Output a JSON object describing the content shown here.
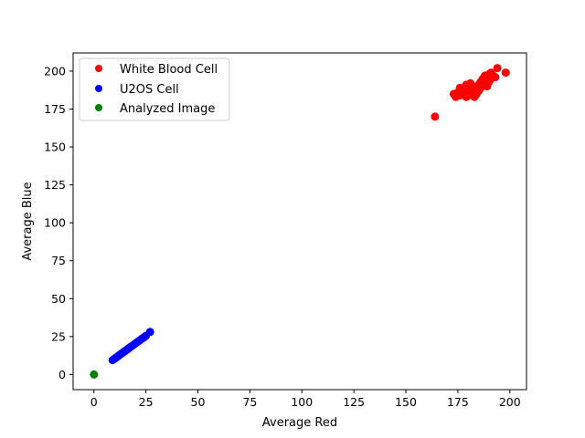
{
  "chart_data": {
    "type": "scatter",
    "title": "",
    "xlabel": "Average Red",
    "ylabel": "Average Blue",
    "xlim": [
      -10,
      208
    ],
    "ylim": [
      -10,
      212
    ],
    "xticks": [
      0,
      25,
      50,
      75,
      100,
      125,
      150,
      175,
      200
    ],
    "yticks": [
      0,
      25,
      50,
      75,
      100,
      125,
      150,
      175,
      200
    ],
    "grid": false,
    "legend_position": "upper-left",
    "series": [
      {
        "name": "White Blood Cell",
        "color": "#ff0000",
        "points": [
          [
            164,
            170
          ],
          [
            173,
            185
          ],
          [
            174,
            183
          ],
          [
            175,
            186
          ],
          [
            176,
            184
          ],
          [
            177,
            188
          ],
          [
            178,
            185
          ],
          [
            179,
            183
          ],
          [
            180,
            187
          ],
          [
            181,
            190
          ],
          [
            182,
            184
          ],
          [
            183,
            186
          ],
          [
            184,
            188
          ],
          [
            185,
            191
          ],
          [
            186,
            189
          ],
          [
            187,
            192
          ],
          [
            188,
            194
          ],
          [
            189,
            190
          ],
          [
            190,
            193
          ],
          [
            191,
            195
          ],
          [
            192,
            197
          ],
          [
            193,
            196
          ],
          [
            194,
            202
          ],
          [
            191,
            199
          ],
          [
            198,
            199
          ],
          [
            189,
            196
          ],
          [
            186,
            193
          ],
          [
            183,
            183
          ],
          [
            180,
            184
          ],
          [
            178,
            188
          ],
          [
            181,
            192
          ],
          [
            184,
            190
          ],
          [
            187,
            195
          ],
          [
            185,
            187
          ],
          [
            188,
            197
          ],
          [
            190,
            198
          ],
          [
            176,
            189
          ],
          [
            179,
            191
          ],
          [
            182,
            188
          ],
          [
            184,
            185
          ]
        ]
      },
      {
        "name": "U2OS Cell",
        "color": "#0000ff",
        "points": [
          [
            9,
            9.5
          ],
          [
            10,
            10.5
          ],
          [
            11,
            11.5
          ],
          [
            12,
            12.5
          ],
          [
            13,
            13.5
          ],
          [
            14,
            14.5
          ],
          [
            15,
            15.5
          ],
          [
            16,
            16.5
          ],
          [
            17,
            17.5
          ],
          [
            18,
            18.5
          ],
          [
            19,
            19.5
          ],
          [
            20,
            20.5
          ],
          [
            21,
            21.5
          ],
          [
            22,
            22.5
          ],
          [
            23,
            23.5
          ],
          [
            24,
            24.5
          ],
          [
            25,
            25.5
          ],
          [
            27,
            28
          ]
        ]
      },
      {
        "name": "Analyzed Image",
        "color": "#008000",
        "points": [
          [
            0,
            0
          ]
        ]
      }
    ]
  }
}
